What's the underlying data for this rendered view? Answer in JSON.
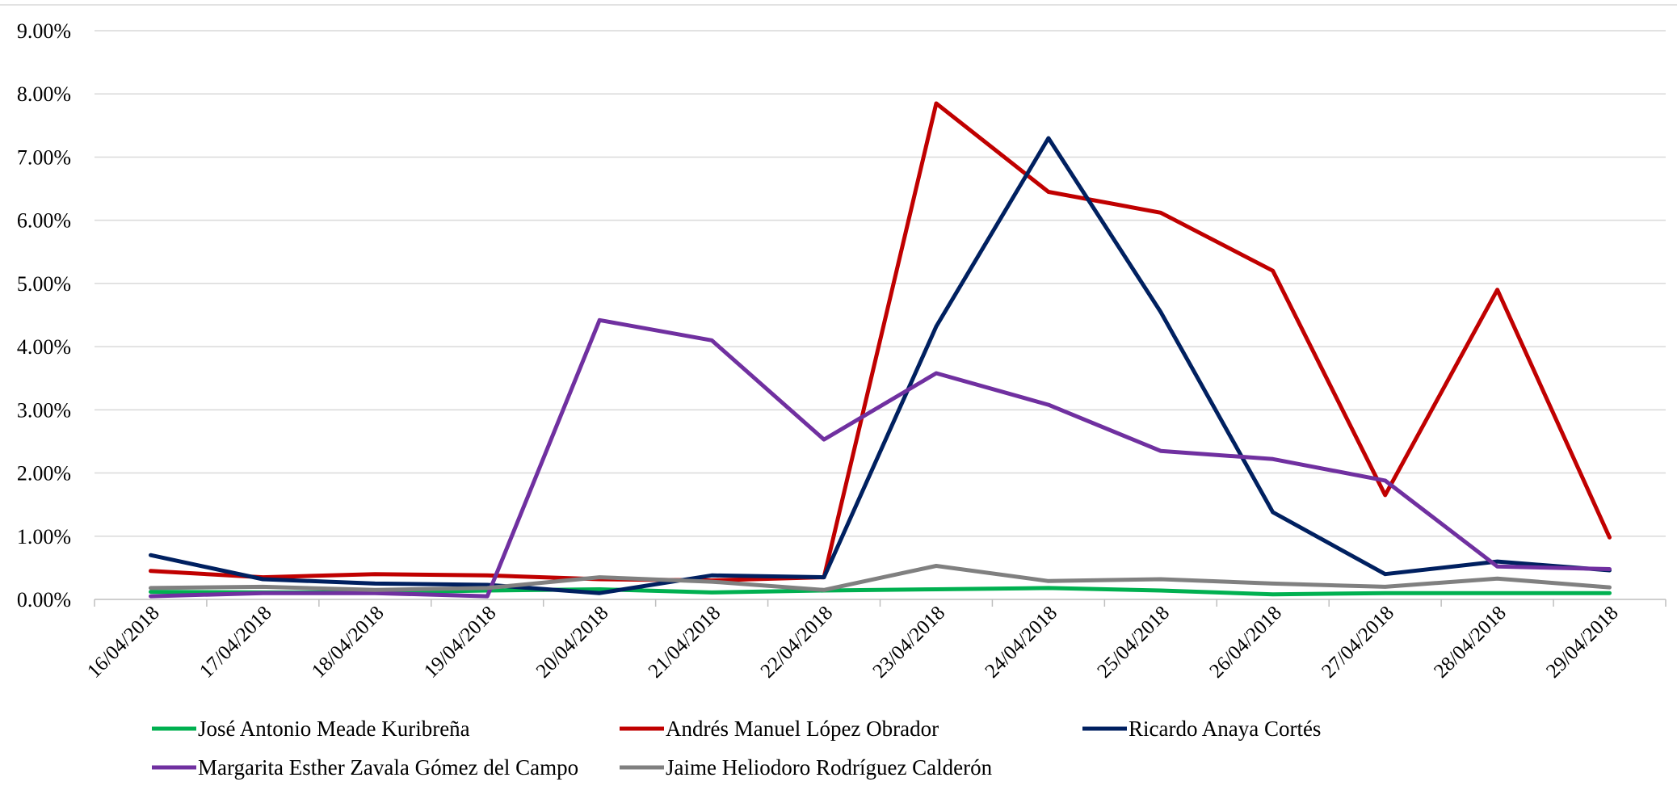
{
  "chart_data": {
    "type": "line",
    "title": "",
    "xlabel": "",
    "ylabel": "",
    "categories": [
      "16/04/2018",
      "17/04/2018",
      "18/04/2018",
      "19/04/2018",
      "20/04/2018",
      "21/04/2018",
      "22/04/2018",
      "23/04/2018",
      "24/04/2018",
      "25/04/2018",
      "26/04/2018",
      "27/04/2018",
      "28/04/2018",
      "29/04/2018"
    ],
    "ylim": [
      0,
      9
    ],
    "yticks": [
      "0.00%",
      "1.00%",
      "2.00%",
      "3.00%",
      "4.00%",
      "5.00%",
      "6.00%",
      "7.00%",
      "8.00%",
      "9.00%"
    ],
    "grid": true,
    "legend_position": "bottom",
    "series": [
      {
        "name": "José Antonio Meade Kuribreña",
        "color": "#00b050",
        "values": [
          0.12,
          0.11,
          0.11,
          0.14,
          0.16,
          0.11,
          0.14,
          0.16,
          0.18,
          0.14,
          0.08,
          0.1,
          0.1,
          0.1
        ]
      },
      {
        "name": "Andrés Manuel López Obrador",
        "color": "#c00000",
        "values": [
          0.45,
          0.35,
          0.4,
          0.38,
          0.32,
          0.3,
          0.35,
          7.85,
          6.45,
          6.12,
          5.2,
          1.65,
          4.9,
          0.98
        ]
      },
      {
        "name": "Ricardo Anaya Cortés",
        "color": "#002060",
        "values": [
          0.7,
          0.32,
          0.25,
          0.23,
          0.1,
          0.38,
          0.35,
          4.32,
          7.3,
          4.55,
          1.38,
          0.4,
          0.6,
          0.46
        ]
      },
      {
        "name": "Margarita Esther Zavala Gómez del Campo",
        "color": "#7030a0",
        "values": [
          0.05,
          0.1,
          0.1,
          0.05,
          4.42,
          4.1,
          2.53,
          3.58,
          3.08,
          2.35,
          2.22,
          1.88,
          0.52,
          0.48
        ]
      },
      {
        "name": "Jaime Heliodoro Rodríguez Calderón",
        "color": "#808080",
        "values": [
          0.18,
          0.2,
          0.15,
          0.18,
          0.35,
          0.28,
          0.15,
          0.53,
          0.29,
          0.32,
          0.25,
          0.2,
          0.33,
          0.19
        ]
      }
    ]
  }
}
